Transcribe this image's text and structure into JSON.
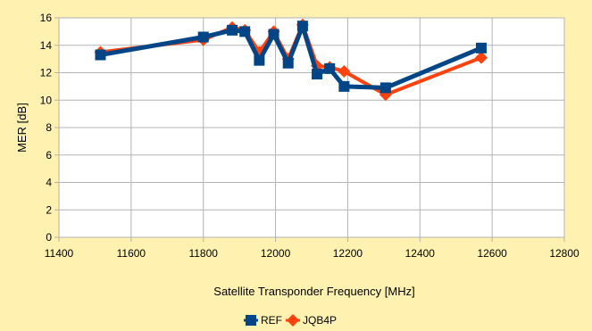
{
  "chart_data": {
    "type": "line",
    "title": "",
    "xlabel": "Satellite Transponder Frequency [MHz]",
    "ylabel": "MER [dB]",
    "xlim": [
      11400,
      12800
    ],
    "ylim": [
      0,
      16
    ],
    "xticks": [
      11400,
      11600,
      11800,
      12000,
      12200,
      12400,
      12600,
      12800
    ],
    "yticks": [
      0,
      2,
      4,
      6,
      8,
      10,
      12,
      14,
      16
    ],
    "grid": true,
    "legend_position": "bottom",
    "series": [
      {
        "name": "REF",
        "color": "#004586",
        "marker": "square",
        "points": [
          [
            11515,
            13.3
          ],
          [
            11800,
            14.6
          ],
          [
            11880,
            15.1
          ],
          [
            11915,
            15.0
          ],
          [
            11955,
            12.9
          ],
          [
            11995,
            14.8
          ],
          [
            12035,
            12.7
          ],
          [
            12075,
            15.4
          ],
          [
            12115,
            11.9
          ],
          [
            12150,
            12.3
          ],
          [
            12190,
            11.0
          ],
          [
            12305,
            10.9
          ],
          [
            12570,
            13.8
          ]
        ]
      },
      {
        "name": "JQB4P",
        "color": "#ff420e",
        "marker": "diamond",
        "points": [
          [
            11515,
            13.5
          ],
          [
            11800,
            14.4
          ],
          [
            11880,
            15.3
          ],
          [
            11915,
            15.1
          ],
          [
            11955,
            13.5
          ],
          [
            11995,
            15.0
          ],
          [
            12035,
            13.0
          ],
          [
            12075,
            15.5
          ],
          [
            12115,
            12.5
          ],
          [
            12150,
            12.4
          ],
          [
            12190,
            12.1
          ],
          [
            12305,
            10.4
          ],
          [
            12570,
            13.1
          ]
        ]
      }
    ]
  }
}
